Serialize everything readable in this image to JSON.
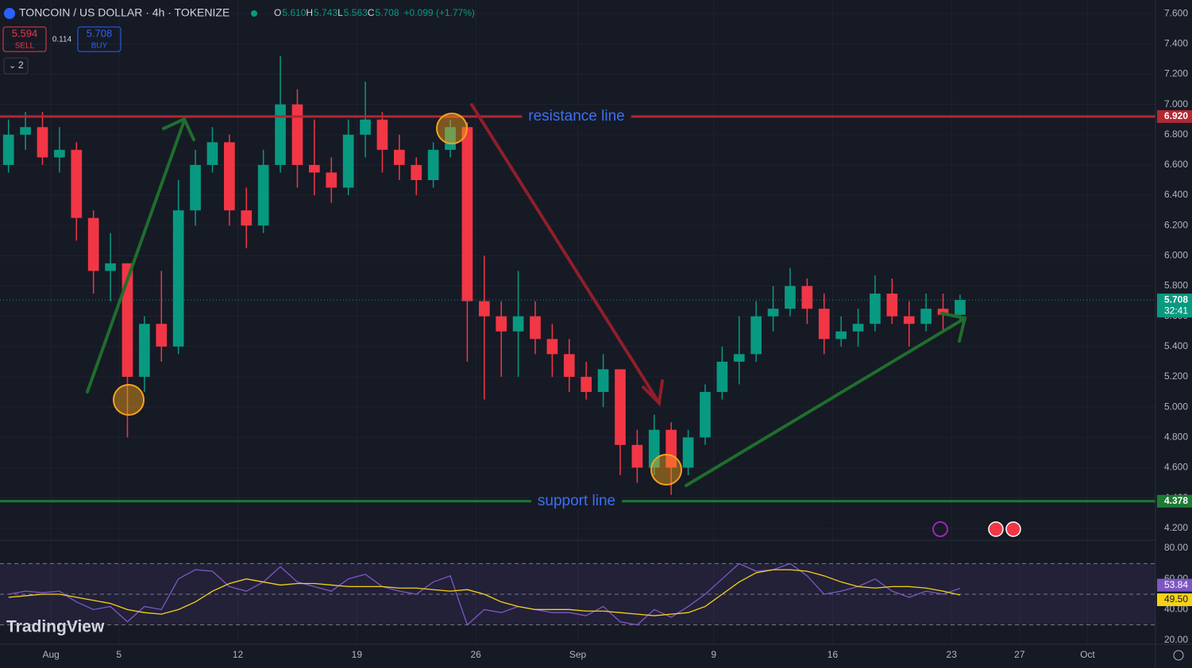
{
  "header": {
    "symbol": "TONCOIN / US DOLLAR · 4h · TOKENIZE",
    "legend": [
      {
        "label": "O",
        "value": "5.610"
      },
      {
        "label": "H",
        "value": "5.743"
      },
      {
        "label": "L",
        "value": "5.563"
      },
      {
        "label": "C",
        "value": "5.708"
      }
    ],
    "change": "+0.099 (+1.77%)",
    "sell": {
      "price": "5.594",
      "label": "SELL"
    },
    "spread": "0.114",
    "buy": {
      "price": "5.708",
      "label": "BUY"
    },
    "indicators": "2",
    "logo": "TradingView"
  },
  "chart_data": [
    {
      "type": "candlestick",
      "up_color": "#089981",
      "down_color": "#f23645",
      "x": [
        "07-29",
        "07-30",
        "07-31",
        "08-01",
        "08-02",
        "08-03",
        "08-04",
        "08-05",
        "08-06",
        "08-07",
        "08-08",
        "08-09",
        "08-10",
        "08-11",
        "08-12",
        "08-13",
        "08-14",
        "08-15",
        "08-16",
        "08-17",
        "08-18",
        "08-19",
        "08-20",
        "08-21",
        "08-22",
        "08-23",
        "08-24",
        "08-25",
        "08-26",
        "08-27",
        "08-28",
        "08-29",
        "08-30",
        "08-31",
        "09-01",
        "09-02",
        "09-03",
        "09-04",
        "09-05",
        "09-06",
        "09-07",
        "09-08",
        "09-09",
        "09-10",
        "09-11",
        "09-12",
        "09-13",
        "09-14",
        "09-15",
        "09-16",
        "09-17",
        "09-18",
        "09-19",
        "09-20",
        "09-21",
        "09-22",
        "09-23"
      ],
      "open": [
        6.6,
        6.8,
        6.85,
        6.65,
        6.7,
        6.25,
        5.9,
        5.95,
        5.2,
        5.55,
        5.4,
        6.3,
        6.6,
        6.75,
        6.3,
        6.2,
        6.6,
        7.0,
        6.6,
        6.55,
        6.45,
        6.8,
        6.9,
        6.7,
        6.6,
        6.5,
        6.7,
        6.85,
        5.7,
        5.6,
        5.5,
        5.6,
        5.45,
        5.35,
        5.2,
        5.1,
        5.25,
        4.75,
        4.6,
        4.85,
        4.6,
        4.8,
        5.1,
        5.3,
        5.35,
        5.6,
        5.65,
        5.8,
        5.65,
        5.45,
        5.5,
        5.55,
        5.75,
        5.6,
        5.55,
        5.65,
        5.61
      ],
      "high": [
        6.9,
        6.95,
        6.95,
        6.85,
        6.75,
        6.3,
        6.15,
        5.95,
        5.6,
        5.9,
        6.5,
        6.7,
        6.85,
        6.8,
        6.45,
        6.7,
        7.32,
        7.1,
        6.9,
        6.65,
        6.9,
        7.15,
        6.95,
        6.8,
        6.65,
        6.75,
        6.9,
        6.88,
        6.0,
        5.7,
        5.9,
        5.7,
        5.55,
        5.45,
        5.3,
        5.35,
        5.25,
        4.85,
        4.95,
        4.9,
        4.85,
        5.15,
        5.4,
        5.6,
        5.7,
        5.8,
        5.92,
        5.85,
        5.75,
        5.6,
        5.65,
        5.87,
        5.85,
        5.7,
        5.75,
        5.75,
        5.743
      ],
      "low": [
        6.55,
        6.7,
        6.6,
        6.55,
        6.1,
        5.75,
        5.7,
        4.8,
        5.1,
        5.3,
        5.35,
        6.2,
        6.55,
        6.2,
        6.05,
        6.15,
        6.55,
        6.45,
        6.4,
        6.35,
        6.4,
        6.65,
        6.55,
        6.5,
        6.4,
        6.45,
        6.65,
        5.3,
        5.05,
        5.2,
        5.2,
        5.35,
        5.2,
        5.1,
        5.05,
        5.0,
        4.55,
        4.5,
        4.55,
        4.42,
        4.55,
        4.75,
        5.05,
        5.15,
        5.3,
        5.5,
        5.6,
        5.55,
        5.35,
        5.4,
        5.4,
        5.5,
        5.55,
        5.4,
        5.5,
        5.5,
        5.563
      ],
      "close": [
        6.8,
        6.85,
        6.65,
        6.7,
        6.25,
        5.9,
        5.95,
        5.2,
        5.55,
        5.4,
        6.3,
        6.6,
        6.75,
        6.3,
        6.2,
        6.6,
        7.0,
        6.6,
        6.55,
        6.45,
        6.8,
        6.9,
        6.7,
        6.6,
        6.5,
        6.7,
        6.85,
        5.7,
        5.6,
        5.5,
        5.6,
        5.45,
        5.35,
        5.2,
        5.1,
        5.25,
        4.75,
        4.6,
        4.85,
        4.6,
        4.8,
        5.1,
        5.3,
        5.35,
        5.6,
        5.65,
        5.8,
        5.65,
        5.45,
        5.5,
        5.55,
        5.75,
        5.6,
        5.55,
        5.65,
        5.61,
        5.708
      ],
      "xlim": [
        "07-29",
        "10-05"
      ],
      "xticks": [
        {
          "value": "08-01",
          "label": "Aug"
        },
        {
          "value": "08-05",
          "label": "5"
        },
        {
          "value": "08-12",
          "label": "12"
        },
        {
          "value": "08-19",
          "label": "19"
        },
        {
          "value": "08-26",
          "label": "26"
        },
        {
          "value": "09-01",
          "label": "Sep"
        },
        {
          "value": "09-09",
          "label": "9"
        },
        {
          "value": "09-16",
          "label": "16"
        },
        {
          "value": "09-23",
          "label": "23"
        },
        {
          "value": "09-27",
          "label": "27"
        },
        {
          "value": "10-01",
          "label": "Oct"
        }
      ],
      "ylim": [
        4.12,
        7.69
      ],
      "yticks": [
        {
          "value": 7.6,
          "label": "7.600"
        },
        {
          "value": 7.4,
          "label": "7.400"
        },
        {
          "value": 7.2,
          "label": "7.200"
        },
        {
          "value": 7.0,
          "label": "7.000"
        },
        {
          "value": 6.8,
          "label": "6.800"
        },
        {
          "value": 6.6,
          "label": "6.600"
        },
        {
          "value": 6.4,
          "label": "6.400"
        },
        {
          "value": 6.2,
          "label": "6.200"
        },
        {
          "value": 6.0,
          "label": "6.000"
        },
        {
          "value": 5.8,
          "label": "5.800"
        },
        {
          "value": 5.6,
          "label": "5.600"
        },
        {
          "value": 5.4,
          "label": "5.400"
        },
        {
          "value": 5.2,
          "label": "5.200"
        },
        {
          "value": 5.0,
          "label": "5.000"
        },
        {
          "value": 4.8,
          "label": "4.800"
        },
        {
          "value": 4.6,
          "label": "4.600"
        },
        {
          "value": 4.4,
          "label": "4.400"
        },
        {
          "value": 4.2,
          "label": "4.200"
        }
      ],
      "grid": true,
      "hlines": [
        {
          "value": 6.92,
          "label": "6.920",
          "text": "resistance line",
          "color": "#b22833"
        },
        {
          "value": 4.378,
          "label": "4.378",
          "text": "support line",
          "color": "#1e7a34"
        }
      ],
      "last_price": {
        "value": 5.708,
        "label": "5.708",
        "countdown": "32:41",
        "color": "#089981"
      }
    },
    {
      "type": "line",
      "ylim": [
        17.4,
        85.2
      ],
      "yticks": [
        {
          "value": 80,
          "label": "80.00"
        },
        {
          "value": 60,
          "label": "60.00"
        },
        {
          "value": 40,
          "label": "40.00"
        },
        {
          "value": 20,
          "label": "20.00"
        }
      ],
      "levels": [
        70,
        50,
        30
      ],
      "series": [
        {
          "color": "#7e57c2",
          "values": [
            50,
            52,
            51,
            52,
            45,
            40,
            42,
            32,
            42,
            40,
            60,
            66,
            65,
            55,
            52,
            58,
            68,
            58,
            55,
            52,
            60,
            63,
            55,
            52,
            50,
            58,
            62,
            30,
            40,
            38,
            42,
            40,
            38,
            38,
            36,
            42,
            32,
            30,
            40,
            35,
            42,
            50,
            60,
            70,
            65,
            66,
            70,
            62,
            50,
            52,
            55,
            60,
            52,
            48,
            52,
            50,
            53.84
          ],
          "last_label": "53.84"
        },
        {
          "color": "#f7d117",
          "values": [
            48,
            49,
            50,
            50,
            48,
            46,
            44,
            40,
            38,
            37,
            40,
            45,
            52,
            57,
            60,
            58,
            56,
            57,
            57,
            56,
            55,
            55,
            55,
            54,
            54,
            53,
            52,
            53,
            50,
            45,
            42,
            40,
            40,
            40,
            39,
            39,
            38,
            37,
            36,
            37,
            38,
            42,
            50,
            58,
            64,
            66,
            66,
            65,
            62,
            58,
            55,
            54,
            55,
            55,
            54,
            52,
            49.5
          ],
          "last_label": "49.50"
        }
      ]
    }
  ]
}
